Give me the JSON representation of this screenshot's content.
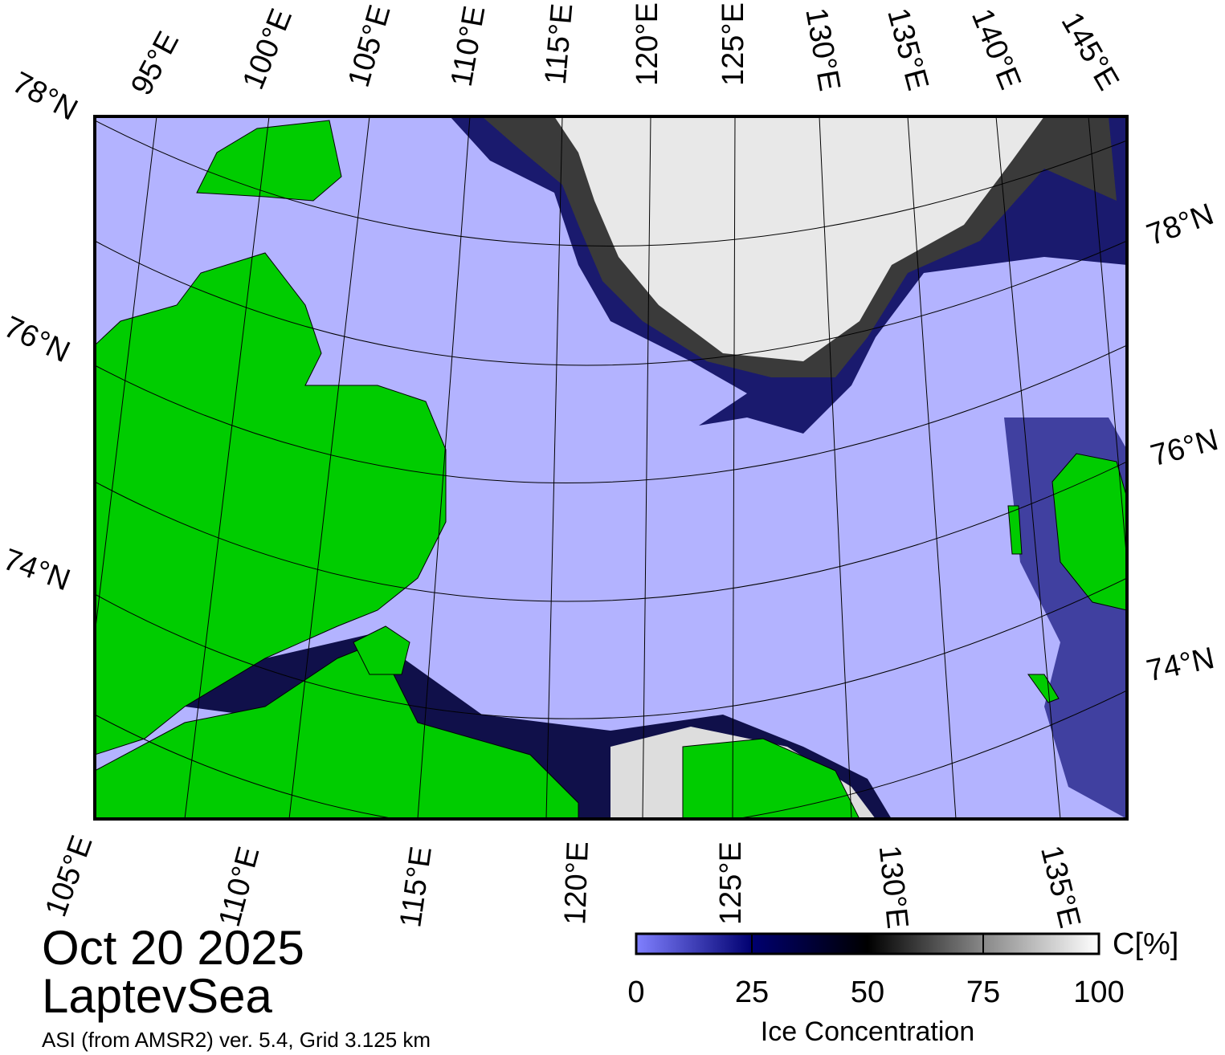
{
  "map": {
    "title": "Oct 20 2025",
    "region": "LaptevSea",
    "source": "ASI (from AMSR2) ver. 5.4,  Grid 3.125 km",
    "top_labels": [
      "95°E",
      "100°E",
      "105°E",
      "110°E",
      "115°E",
      "120°E",
      "125°E",
      "130°E",
      "135°E",
      "140°E",
      "145°E"
    ],
    "left_labels": [
      "78°N",
      "76°N",
      "74°N"
    ],
    "right_labels": [
      "78°N",
      "76°N",
      "74°N"
    ],
    "bottom_labels": [
      "105°E",
      "110°E",
      "115°E",
      "120°E",
      "125°E",
      "130°E",
      "135°E"
    ],
    "colorbar": {
      "label": "Ice Concentration",
      "unit": "C[%]",
      "range": [
        0,
        100
      ],
      "ticks": [
        0,
        25,
        50,
        75,
        100
      ],
      "colors": [
        "#8080ff",
        "#000070",
        "#000000",
        "#888888",
        "#ffffff"
      ]
    }
  }
}
